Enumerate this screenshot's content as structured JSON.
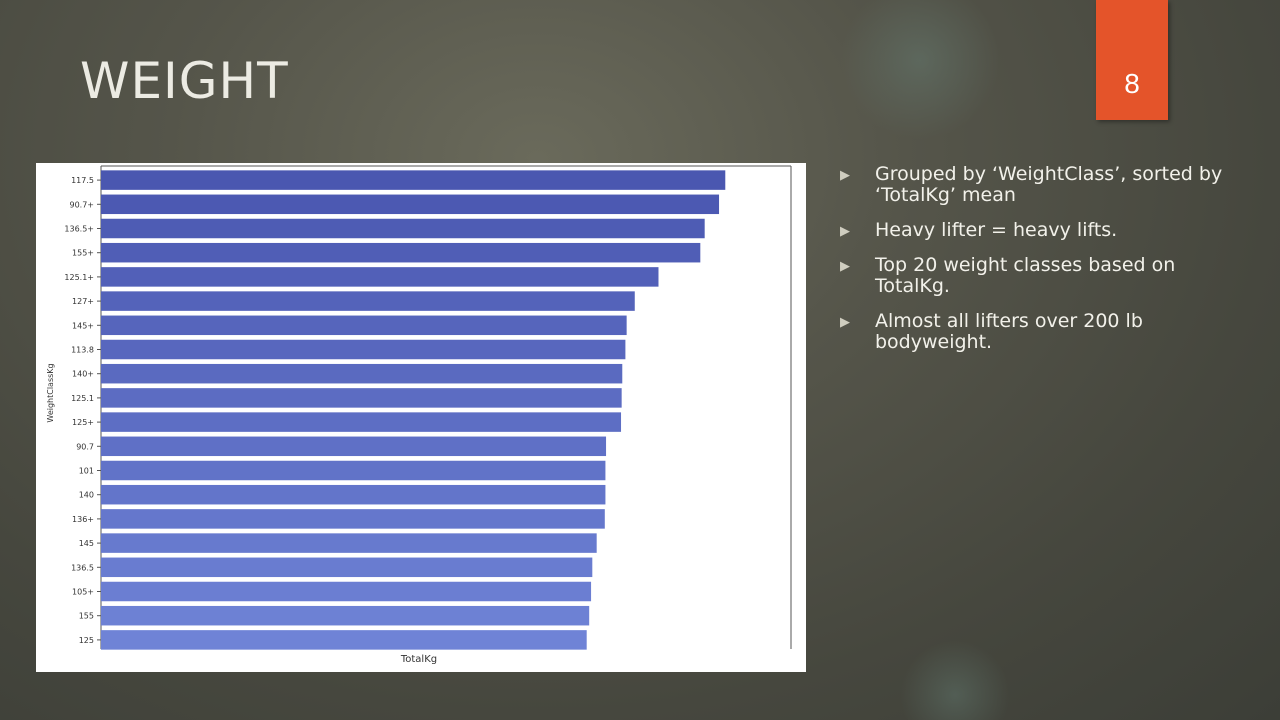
{
  "slide": {
    "title": "WEIGHT",
    "page_number": "8"
  },
  "bullets": [
    {
      "text": "Grouped by ‘WeightClass’, sorted by ‘TotalKg’ mean"
    },
    {
      "text": "Heavy lifter = heavy lifts."
    },
    {
      "text": "Top 20 weight classes based on TotalKg."
    },
    {
      "text": "Almost all lifters over 200 lb bodyweight."
    }
  ],
  "colors": {
    "badge": "#e4542a",
    "bar_top": "#4a57b0",
    "bar_bottom": "#6f83d6"
  },
  "chart_data": {
    "type": "bar",
    "orientation": "horizontal",
    "xlabel": "TotalKg",
    "ylabel": "WeightClassKg",
    "xlim": [
      0,
      1.05
    ],
    "categories": [
      "117.5",
      "90.7+",
      "136.5+",
      "155+",
      "125.1+",
      "127+",
      "145+",
      "113.8",
      "140+",
      "125.1",
      "125+",
      "90.7",
      "101",
      "140",
      "136+",
      "145",
      "136.5",
      "105+",
      "155",
      "125"
    ],
    "values": [
      1.0,
      0.99,
      0.967,
      0.96,
      0.893,
      0.855,
      0.842,
      0.84,
      0.835,
      0.834,
      0.833,
      0.809,
      0.808,
      0.808,
      0.807,
      0.794,
      0.787,
      0.785,
      0.782,
      0.778
    ],
    "value_unit": "relative to largest bar (no x tick labels shown)",
    "grid": false,
    "legend": "none"
  }
}
